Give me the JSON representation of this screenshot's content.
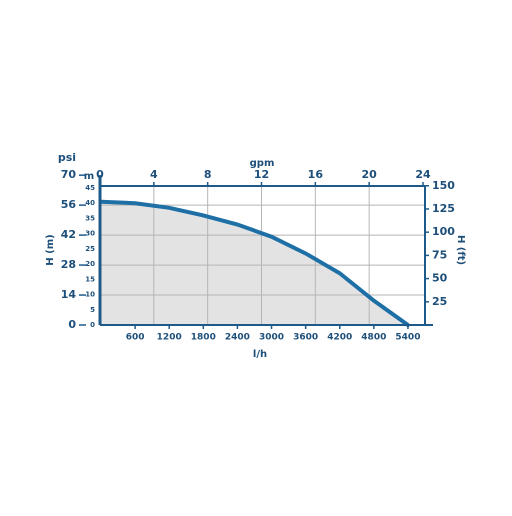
{
  "chart_data": {
    "type": "line",
    "x": [
      0,
      600,
      1200,
      1800,
      2400,
      3000,
      3600,
      4200,
      4800,
      5400
    ],
    "series": [
      {
        "color": "#1d6fa5",
        "values": [
          40.5,
          40,
          38.5,
          36,
          33,
          29,
          23.5,
          17,
          8,
          0
        ]
      }
    ],
    "fill": "#e3e3e3",
    "xlabel": "l/h",
    "xlim": [
      0,
      5700
    ],
    "xticks": [
      600,
      1200,
      1800,
      2400,
      3000,
      3600,
      4200,
      4800,
      5400
    ],
    "y_unit": "m",
    "ylabel": "H (m)",
    "ylim": [
      0,
      45
    ],
    "yticks": [
      0,
      5,
      10,
      15,
      20,
      25,
      30,
      35,
      40,
      45
    ],
    "psi_axis": {
      "label": "psi",
      "lim": [
        0,
        64
      ],
      "ticks": [
        0,
        14,
        28,
        42,
        56,
        70
      ]
    },
    "x2_axis": {
      "label": "gpm",
      "lim": [
        0,
        24
      ],
      "ticks": [
        0,
        4,
        8,
        12,
        16,
        20,
        24
      ]
    },
    "y2label": "H (ft)",
    "y2lim": [
      0,
      147.6
    ],
    "y2ticks": [
      25,
      50,
      75,
      100,
      125,
      150
    ],
    "grid": true
  }
}
